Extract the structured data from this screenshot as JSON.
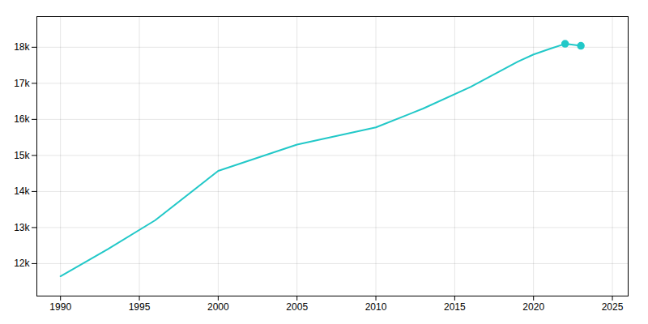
{
  "chart_data": {
    "type": "line",
    "x": [
      1990,
      1993,
      1996,
      2000,
      2005,
      2010,
      2013,
      2016,
      2019,
      2020,
      2021,
      2022,
      2023
    ],
    "series": [
      {
        "type": "line",
        "color": "#22c8c8",
        "values": [
          11650,
          12400,
          13200,
          14570,
          15300,
          15778,
          16300,
          16900,
          17600,
          17800,
          17950,
          18095,
          18040
        ]
      },
      {
        "type": "scatter",
        "color": "#22c8c8",
        "marker": "circle",
        "values": [
          null,
          null,
          null,
          null,
          null,
          null,
          null,
          null,
          null,
          null,
          null,
          18095,
          18040
        ]
      }
    ],
    "xlim": [
      1988.5,
      2026
    ],
    "ylim": [
      11100,
      18850
    ],
    "xticks": [
      1990,
      1995,
      2000,
      2005,
      2010,
      2015,
      2020,
      2025
    ],
    "yticks": [
      {
        "value": 12000,
        "label": "12k"
      },
      {
        "value": 13000,
        "label": "13k"
      },
      {
        "value": 14000,
        "label": "14k"
      },
      {
        "value": 15000,
        "label": "15k"
      },
      {
        "value": 16000,
        "label": "16k"
      },
      {
        "value": 17000,
        "label": "17k"
      },
      {
        "value": 18000,
        "label": "18k"
      }
    ],
    "grid": true
  }
}
